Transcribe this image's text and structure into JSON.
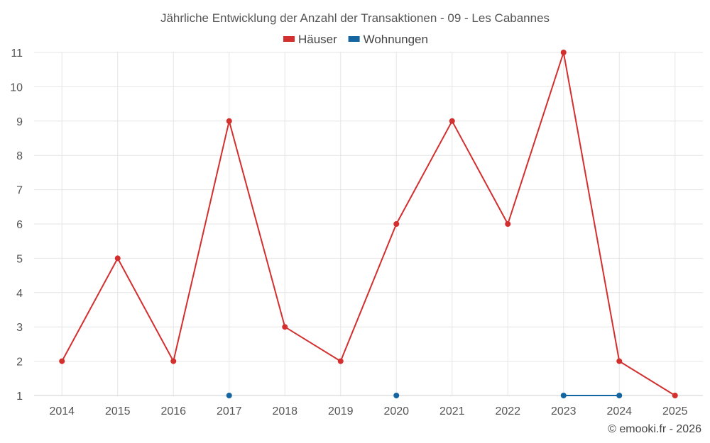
{
  "chart_data": {
    "type": "line",
    "title": "Jährliche Entwicklung der Anzahl der Transaktionen - 09 - Les Cabannes",
    "categories": [
      "2014",
      "2015",
      "2016",
      "2017",
      "2018",
      "2019",
      "2020",
      "2021",
      "2022",
      "2023",
      "2024",
      "2025"
    ],
    "series": [
      {
        "name": "Häuser",
        "color": "#d32f2f",
        "values": [
          2,
          5,
          2,
          9,
          3,
          2,
          6,
          9,
          6,
          11,
          2,
          1
        ]
      },
      {
        "name": "Wohnungen",
        "color": "#1565a0",
        "values": [
          null,
          null,
          null,
          1,
          null,
          null,
          1,
          null,
          null,
          1,
          1,
          null
        ]
      }
    ],
    "ylim": [
      1,
      11
    ],
    "yticks": [
      "1",
      "2",
      "3",
      "4",
      "5",
      "6",
      "7",
      "8",
      "9",
      "10",
      "11"
    ],
    "grid": true,
    "legend_position": "top-center",
    "xlabel": "",
    "ylabel": ""
  },
  "credit": "© emooki.fr - 2026"
}
